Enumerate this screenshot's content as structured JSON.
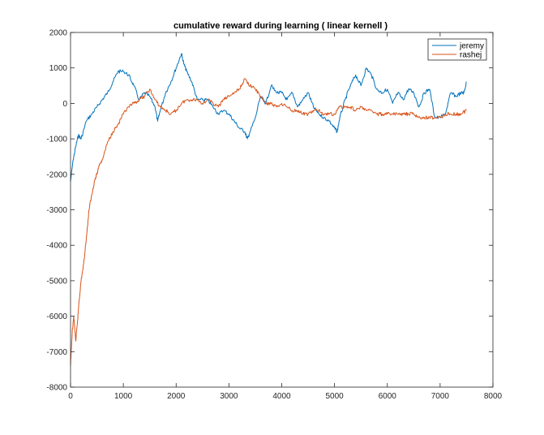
{
  "chart_data": {
    "type": "line",
    "title": "cumulative reward during learning ( linear kernell )",
    "xlabel": "",
    "ylabel": "",
    "xlim": [
      0,
      8000
    ],
    "ylim": [
      -8000,
      2000
    ],
    "xticks": [
      0,
      1000,
      2000,
      3000,
      4000,
      5000,
      6000,
      7000,
      8000
    ],
    "yticks": [
      -8000,
      -7000,
      -6000,
      -5000,
      -4000,
      -3000,
      -2000,
      -1000,
      0,
      1000,
      2000
    ],
    "grid": false,
    "legend_position": "top-right",
    "series": [
      {
        "name": "jeremy",
        "color": "#0072BD",
        "x": [
          0,
          50,
          100,
          150,
          200,
          300,
          400,
          500,
          600,
          700,
          800,
          900,
          1000,
          1100,
          1200,
          1300,
          1400,
          1500,
          1600,
          1650,
          1700,
          1800,
          1900,
          2000,
          2100,
          2150,
          2200,
          2300,
          2400,
          2500,
          2600,
          2700,
          2800,
          2900,
          3000,
          3100,
          3200,
          3300,
          3350,
          3400,
          3500,
          3600,
          3700,
          3800,
          3900,
          4000,
          4100,
          4200,
          4300,
          4400,
          4500,
          4600,
          4700,
          4800,
          4900,
          5000,
          5050,
          5100,
          5200,
          5300,
          5400,
          5500,
          5600,
          5700,
          5800,
          5900,
          6000,
          6100,
          6200,
          6300,
          6400,
          6500,
          6600,
          6700,
          6800,
          6900,
          7000,
          7100,
          7200,
          7300,
          7400,
          7450,
          7500
        ],
        "y": [
          -2200,
          -1600,
          -1200,
          -900,
          -1000,
          -500,
          -300,
          -100,
          100,
          300,
          600,
          900,
          900,
          800,
          500,
          100,
          300,
          200,
          -100,
          -500,
          -200,
          300,
          600,
          1000,
          1400,
          1100,
          900,
          600,
          100,
          100,
          100,
          -100,
          -300,
          -200,
          -300,
          -500,
          -700,
          -800,
          -1000,
          -800,
          -400,
          200,
          0,
          500,
          300,
          300,
          100,
          300,
          -100,
          100,
          300,
          -100,
          -300,
          -400,
          -500,
          -700,
          -800,
          -400,
          100,
          500,
          800,
          500,
          1000,
          800,
          400,
          300,
          400,
          0,
          300,
          100,
          400,
          300,
          -100,
          300,
          400,
          -400,
          -400,
          -300,
          300,
          200,
          300,
          300,
          600
        ]
      },
      {
        "name": "rashej",
        "color": "#D95319",
        "x": [
          0,
          30,
          60,
          100,
          130,
          160,
          200,
          250,
          300,
          350,
          400,
          450,
          500,
          550,
          600,
          700,
          800,
          900,
          1000,
          1100,
          1200,
          1300,
          1400,
          1500,
          1600,
          1700,
          1800,
          1900,
          2000,
          2100,
          2200,
          2300,
          2400,
          2500,
          2600,
          2700,
          2800,
          2900,
          3000,
          3100,
          3200,
          3300,
          3400,
          3500,
          3600,
          3700,
          3800,
          3900,
          4000,
          4100,
          4200,
          4300,
          4400,
          4500,
          4600,
          4700,
          4800,
          4900,
          5000,
          5100,
          5200,
          5300,
          5400,
          5500,
          5600,
          5700,
          5800,
          5900,
          6000,
          6100,
          6200,
          6300,
          6400,
          6500,
          6600,
          6700,
          6800,
          6900,
          7000,
          7100,
          7200,
          7300,
          7400,
          7500
        ],
        "y": [
          -7400,
          -6500,
          -6000,
          -6700,
          -6200,
          -5600,
          -5000,
          -4500,
          -3800,
          -3000,
          -2600,
          -2200,
          -2000,
          -1700,
          -1600,
          -1100,
          -800,
          -600,
          -300,
          -100,
          0,
          100,
          200,
          400,
          100,
          -100,
          -200,
          -300,
          -200,
          0,
          100,
          100,
          100,
          0,
          100,
          0,
          -100,
          100,
          200,
          300,
          400,
          700,
          500,
          400,
          200,
          0,
          0,
          -100,
          0,
          -100,
          -200,
          -200,
          -300,
          -300,
          -200,
          -200,
          -300,
          -300,
          -300,
          -100,
          -100,
          -100,
          -200,
          -100,
          -200,
          -200,
          -300,
          -300,
          -300,
          -300,
          -300,
          -300,
          -300,
          -300,
          -400,
          -400,
          -400,
          -400,
          -400,
          -300,
          -300,
          -300,
          -300,
          -200
        ]
      }
    ]
  }
}
